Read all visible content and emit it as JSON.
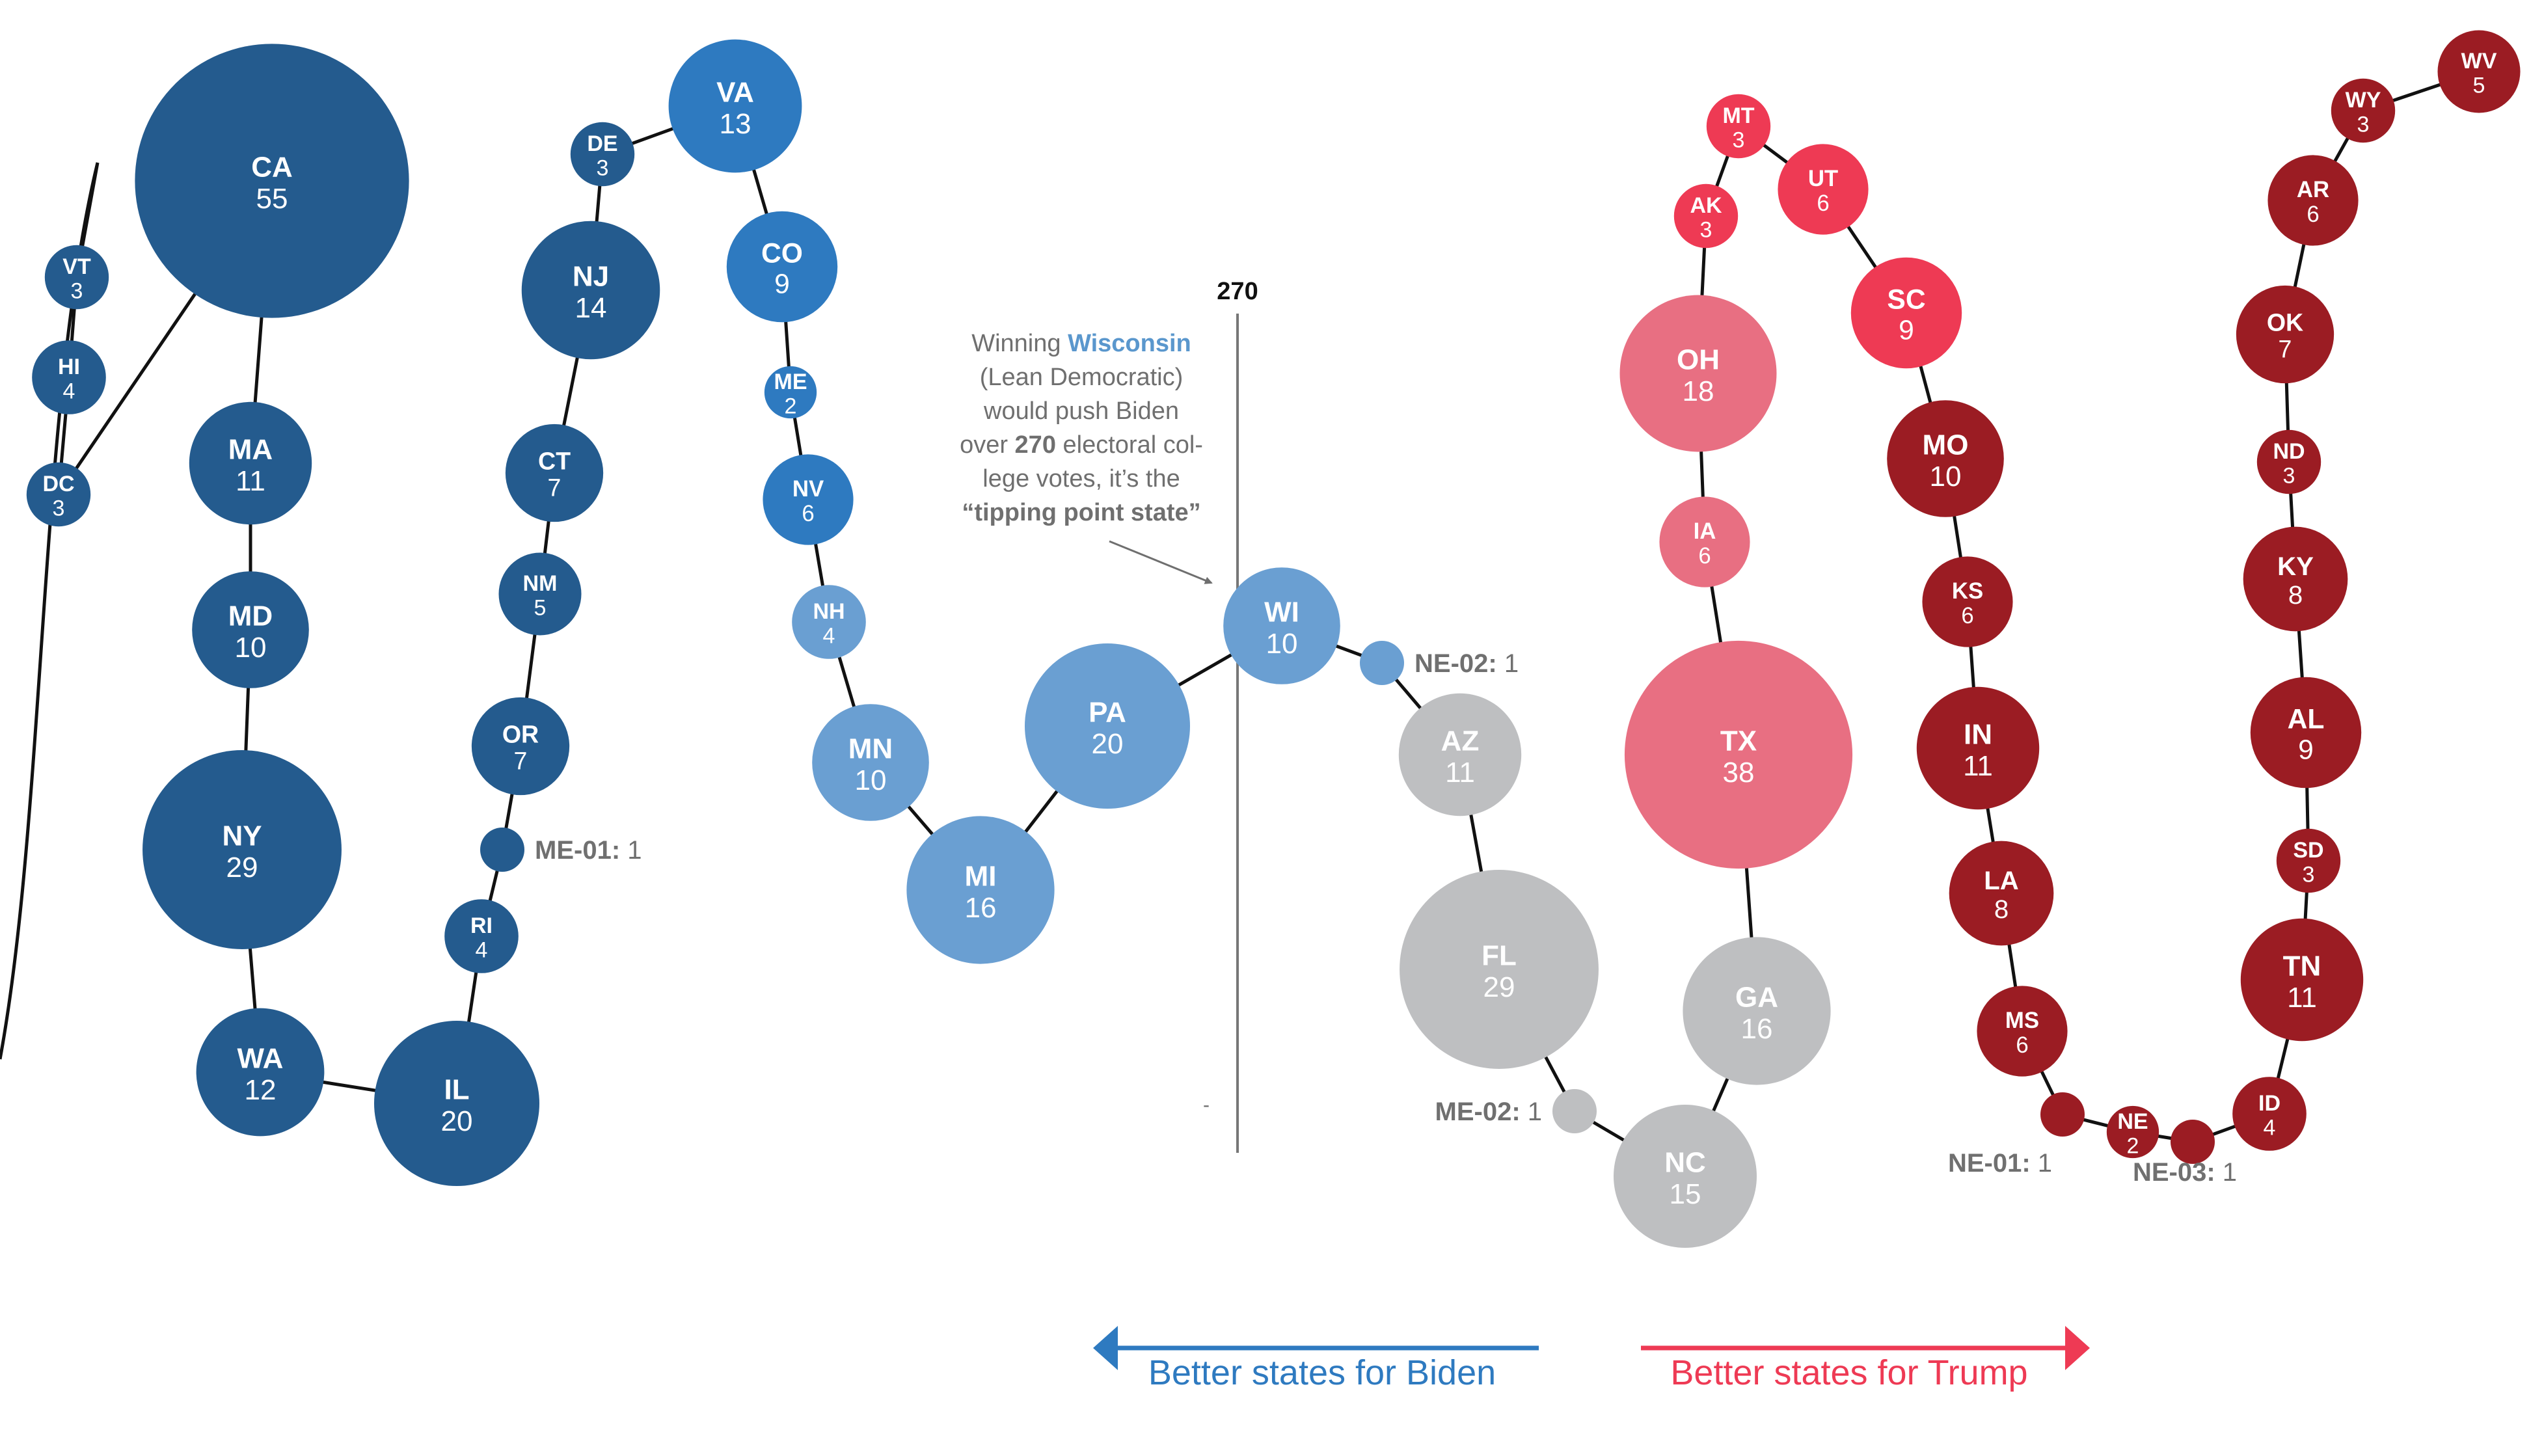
{
  "chart_data": {
    "type": "bubble-chain",
    "colors": {
      "safe-d": "#245b8e",
      "likely-d": "#2e7ac0",
      "lean-d": "#6a9fd2",
      "tossup": "#bebfc1",
      "lean-r": "#e86f82",
      "likely-r": "#ee3a54",
      "safe-r": "#9b1c23"
    },
    "states": [
      {
        "code": "VT",
        "ev": 3,
        "rating": "safe-d"
      },
      {
        "code": "HI",
        "ev": 4,
        "rating": "safe-d"
      },
      {
        "code": "DC",
        "ev": 3,
        "rating": "safe-d"
      },
      {
        "code": "CA",
        "ev": 55,
        "rating": "safe-d"
      },
      {
        "code": "MA",
        "ev": 11,
        "rating": "safe-d"
      },
      {
        "code": "MD",
        "ev": 10,
        "rating": "safe-d"
      },
      {
        "code": "NY",
        "ev": 29,
        "rating": "safe-d"
      },
      {
        "code": "WA",
        "ev": 12,
        "rating": "safe-d"
      },
      {
        "code": "IL",
        "ev": 20,
        "rating": "safe-d"
      },
      {
        "code": "RI",
        "ev": 4,
        "rating": "safe-d"
      },
      {
        "code": "ME-01:",
        "ev": 1,
        "rating": "safe-d"
      },
      {
        "code": "OR",
        "ev": 7,
        "rating": "safe-d"
      },
      {
        "code": "NM",
        "ev": 5,
        "rating": "safe-d"
      },
      {
        "code": "CT",
        "ev": 7,
        "rating": "safe-d"
      },
      {
        "code": "NJ",
        "ev": 14,
        "rating": "safe-d"
      },
      {
        "code": "DE",
        "ev": 3,
        "rating": "safe-d"
      },
      {
        "code": "VA",
        "ev": 13,
        "rating": "likely-d"
      },
      {
        "code": "CO",
        "ev": 9,
        "rating": "likely-d"
      },
      {
        "code": "ME",
        "ev": 2,
        "rating": "likely-d"
      },
      {
        "code": "NV",
        "ev": 6,
        "rating": "likely-d"
      },
      {
        "code": "NH",
        "ev": 4,
        "rating": "lean-d"
      },
      {
        "code": "MN",
        "ev": 10,
        "rating": "lean-d"
      },
      {
        "code": "MI",
        "ev": 16,
        "rating": "lean-d"
      },
      {
        "code": "PA",
        "ev": 20,
        "rating": "lean-d"
      },
      {
        "code": "WI",
        "ev": 10,
        "rating": "lean-d"
      },
      {
        "code": "NE-02:",
        "ev": 1,
        "rating": "lean-d"
      },
      {
        "code": "AZ",
        "ev": 11,
        "rating": "tossup"
      },
      {
        "code": "FL",
        "ev": 29,
        "rating": "tossup"
      },
      {
        "code": "ME-02:",
        "ev": 1,
        "rating": "tossup"
      },
      {
        "code": "NC",
        "ev": 15,
        "rating": "tossup"
      },
      {
        "code": "GA",
        "ev": 16,
        "rating": "tossup"
      },
      {
        "code": "TX",
        "ev": 38,
        "rating": "lean-r"
      },
      {
        "code": "IA",
        "ev": 6,
        "rating": "lean-r"
      },
      {
        "code": "OH",
        "ev": 18,
        "rating": "lean-r"
      },
      {
        "code": "AK",
        "ev": 3,
        "rating": "likely-r"
      },
      {
        "code": "MT",
        "ev": 3,
        "rating": "likely-r"
      },
      {
        "code": "UT",
        "ev": 6,
        "rating": "likely-r"
      },
      {
        "code": "SC",
        "ev": 9,
        "rating": "likely-r"
      },
      {
        "code": "MO",
        "ev": 10,
        "rating": "safe-r"
      },
      {
        "code": "KS",
        "ev": 6,
        "rating": "safe-r"
      },
      {
        "code": "IN",
        "ev": 11,
        "rating": "safe-r"
      },
      {
        "code": "LA",
        "ev": 8,
        "rating": "safe-r"
      },
      {
        "code": "MS",
        "ev": 6,
        "rating": "safe-r"
      },
      {
        "code": "NE-01:",
        "ev": 1,
        "rating": "safe-r"
      },
      {
        "code": "NE",
        "ev": 2,
        "rating": "safe-r"
      },
      {
        "code": "NE-03:",
        "ev": 1,
        "rating": "safe-r"
      },
      {
        "code": "ID",
        "ev": 4,
        "rating": "safe-r"
      },
      {
        "code": "TN",
        "ev": 11,
        "rating": "safe-r"
      },
      {
        "code": "SD",
        "ev": 3,
        "rating": "safe-r"
      },
      {
        "code": "AL",
        "ev": 9,
        "rating": "safe-r"
      },
      {
        "code": "KY",
        "ev": 8,
        "rating": "safe-r"
      },
      {
        "code": "ND",
        "ev": 3,
        "rating": "safe-r"
      },
      {
        "code": "OK",
        "ev": 7,
        "rating": "safe-r"
      },
      {
        "code": "AR",
        "ev": 6,
        "rating": "safe-r"
      },
      {
        "code": "WY",
        "ev": 3,
        "rating": "safe-r"
      },
      {
        "code": "WV",
        "ev": 5,
        "rating": "safe-r"
      }
    ],
    "threshold": {
      "label": "270",
      "value": 270
    },
    "tick_mark": "-",
    "annotation": {
      "line1_a": "Winning ",
      "line1_b": "Wisconsin",
      "line2": "(Lean Democratic)",
      "line3": "would push Biden",
      "line4_a": "over ",
      "line4_b": "270",
      "line4_c": " electoral col-",
      "line5": "lege votes, it’s the",
      "line6": "“tipping point state”"
    },
    "direction": {
      "left_label": "Better states for Biden",
      "right_label": "Better states for Trump",
      "left_color": "#2e7ac0",
      "right_color": "#ee3a54"
    }
  }
}
